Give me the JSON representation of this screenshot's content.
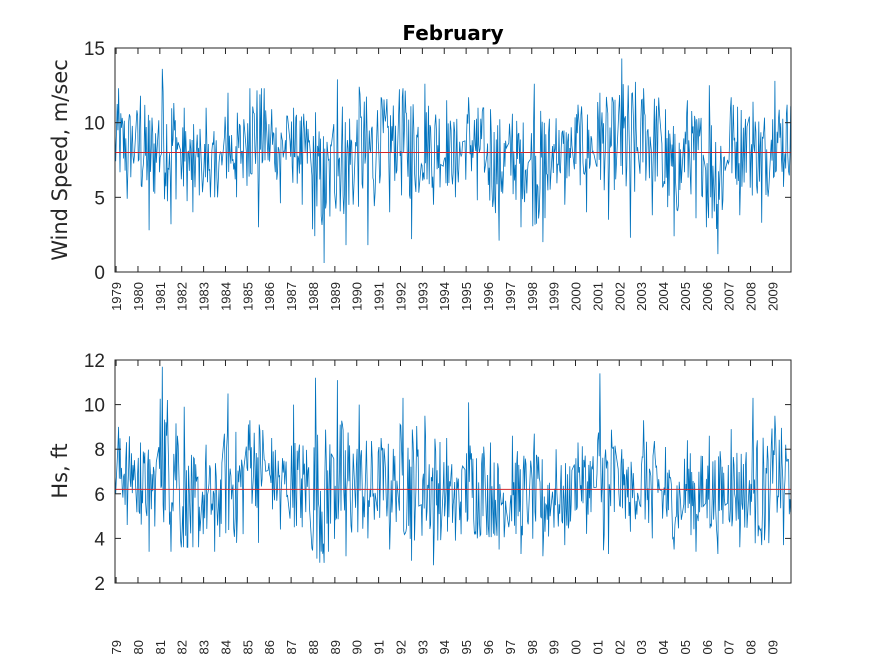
{
  "chart_data": [
    {
      "type": "line",
      "title": "February",
      "ylabel": "Wind Speed, m/sec",
      "xlabel": "",
      "ylim": [
        0,
        15
      ],
      "yticks": [
        0,
        5,
        10,
        15
      ],
      "xlim": [
        1979.0,
        2009.9
      ],
      "x_tick_labels": [
        "1979",
        "1980",
        "1981",
        "1982",
        "1983",
        "1984",
        "1985",
        "1986",
        "1987",
        "1988",
        "1989",
        "1990",
        "1991",
        "1992",
        "1993",
        "1994",
        "1995",
        "1996",
        "1997",
        "1998",
        "1999",
        "2000",
        "2001",
        "2002",
        "2003",
        "2004",
        "2005",
        "2006",
        "2007",
        "2008",
        "2009"
      ],
      "mean_line": 8.0,
      "mean_color": "#d62728",
      "series_color": "#0072bd",
      "grid": false,
      "yearly": [
        {
          "year": 1979,
          "mean": 8.5,
          "min": 4.9,
          "max": 12.3
        },
        {
          "year": 1980,
          "mean": 8.0,
          "min": 2.8,
          "max": 11.8
        },
        {
          "year": 1981,
          "mean": 8.6,
          "min": 3.2,
          "max": 13.6
        },
        {
          "year": 1982,
          "mean": 7.3,
          "min": 4.0,
          "max": 11.0
        },
        {
          "year": 1983,
          "mean": 7.2,
          "min": 5.0,
          "max": 11.0
        },
        {
          "year": 1984,
          "mean": 8.2,
          "min": 5.0,
          "max": 12.0
        },
        {
          "year": 1985,
          "mean": 9.2,
          "min": 3.0,
          "max": 12.3
        },
        {
          "year": 1986,
          "mean": 8.4,
          "min": 4.6,
          "max": 10.9
        },
        {
          "year": 1987,
          "mean": 8.2,
          "min": 4.5,
          "max": 11.0
        },
        {
          "year": 1988,
          "mean": 6.0,
          "min": 0.6,
          "max": 10.7
        },
        {
          "year": 1989,
          "mean": 7.7,
          "min": 1.8,
          "max": 12.9
        },
        {
          "year": 1990,
          "mean": 8.0,
          "min": 1.8,
          "max": 12.4
        },
        {
          "year": 1991,
          "mean": 8.8,
          "min": 4.0,
          "max": 11.7
        },
        {
          "year": 1992,
          "mean": 8.5,
          "min": 2.2,
          "max": 12.3
        },
        {
          "year": 1993,
          "mean": 8.6,
          "min": 4.5,
          "max": 12.6
        },
        {
          "year": 1994,
          "mean": 8.0,
          "min": 5.0,
          "max": 11.5
        },
        {
          "year": 1995,
          "mean": 8.6,
          "min": 4.8,
          "max": 11.7
        },
        {
          "year": 1996,
          "mean": 7.2,
          "min": 2.1,
          "max": 10.9
        },
        {
          "year": 1997,
          "mean": 7.5,
          "min": 3.0,
          "max": 10.6
        },
        {
          "year": 1998,
          "mean": 7.0,
          "min": 2.0,
          "max": 12.6
        },
        {
          "year": 1999,
          "mean": 8.0,
          "min": 4.5,
          "max": 10.3
        },
        {
          "year": 2000,
          "mean": 8.4,
          "min": 4.0,
          "max": 11.2
        },
        {
          "year": 2001,
          "mean": 8.6,
          "min": 3.5,
          "max": 12.0
        },
        {
          "year": 2002,
          "mean": 8.4,
          "min": 2.3,
          "max": 14.3
        },
        {
          "year": 2003,
          "mean": 8.9,
          "min": 3.8,
          "max": 12.3
        },
        {
          "year": 2004,
          "mean": 6.8,
          "min": 2.4,
          "max": 10.9
        },
        {
          "year": 2005,
          "mean": 8.0,
          "min": 3.6,
          "max": 11.5
        },
        {
          "year": 2006,
          "mean": 6.9,
          "min": 1.2,
          "max": 12.5
        },
        {
          "year": 2007,
          "mean": 8.6,
          "min": 3.8,
          "max": 11.7
        },
        {
          "year": 2008,
          "mean": 8.0,
          "min": 3.3,
          "max": 11.4
        },
        {
          "year": 2009,
          "mean": 9.0,
          "min": 5.7,
          "max": 12.8
        }
      ]
    },
    {
      "type": "line",
      "title": "",
      "ylabel": "Hs, ft",
      "xlabel": "",
      "ylim": [
        2,
        12
      ],
      "yticks": [
        2,
        4,
        6,
        8,
        10,
        12
      ],
      "xlim": [
        1979.0,
        2009.9
      ],
      "x_tick_labels": [
        "79",
        "80",
        "81",
        "82",
        "83",
        "84",
        "85",
        "86",
        "87",
        "88",
        "89",
        "90",
        "91",
        "92",
        "93",
        "94",
        "95",
        "96",
        "97",
        "98",
        "99",
        "00",
        "01",
        "02",
        "03",
        "04",
        "05",
        "06",
        "07",
        "08",
        "09"
      ],
      "mean_line": 6.2,
      "mean_color": "#d62728",
      "series_color": "#0072bd",
      "grid": false,
      "yearly": [
        {
          "year": 1979,
          "mean": 7.0,
          "min": 4.6,
          "max": 9.0
        },
        {
          "year": 1980,
          "mean": 6.3,
          "min": 3.4,
          "max": 8.3
        },
        {
          "year": 1981,
          "mean": 7.6,
          "min": 3.4,
          "max": 11.7
        },
        {
          "year": 1982,
          "mean": 5.4,
          "min": 3.6,
          "max": 9.9
        },
        {
          "year": 1983,
          "mean": 5.7,
          "min": 3.4,
          "max": 8.2
        },
        {
          "year": 1984,
          "mean": 6.4,
          "min": 3.8,
          "max": 10.5
        },
        {
          "year": 1985,
          "mean": 7.4,
          "min": 3.8,
          "max": 9.3
        },
        {
          "year": 1986,
          "mean": 6.6,
          "min": 4.4,
          "max": 8.5
        },
        {
          "year": 1987,
          "mean": 6.5,
          "min": 4.5,
          "max": 10.0
        },
        {
          "year": 1988,
          "mean": 6.0,
          "min": 2.9,
          "max": 11.2
        },
        {
          "year": 1989,
          "mean": 6.5,
          "min": 3.2,
          "max": 11.1
        },
        {
          "year": 1990,
          "mean": 6.3,
          "min": 4.0,
          "max": 10.0
        },
        {
          "year": 1991,
          "mean": 6.5,
          "min": 3.5,
          "max": 8.5
        },
        {
          "year": 1992,
          "mean": 6.6,
          "min": 3.0,
          "max": 10.3
        },
        {
          "year": 1993,
          "mean": 6.4,
          "min": 2.8,
          "max": 9.5
        },
        {
          "year": 1994,
          "mean": 5.8,
          "min": 3.9,
          "max": 8.5
        },
        {
          "year": 1995,
          "mean": 6.3,
          "min": 4.0,
          "max": 10.1
        },
        {
          "year": 1996,
          "mean": 5.8,
          "min": 3.5,
          "max": 8.3
        },
        {
          "year": 1997,
          "mean": 6.0,
          "min": 3.3,
          "max": 8.6
        },
        {
          "year": 1998,
          "mean": 5.7,
          "min": 3.2,
          "max": 8.7
        },
        {
          "year": 1999,
          "mean": 5.8,
          "min": 3.7,
          "max": 8.0
        },
        {
          "year": 2000,
          "mean": 6.6,
          "min": 4.2,
          "max": 8.3
        },
        {
          "year": 2001,
          "mean": 6.4,
          "min": 3.3,
          "max": 11.4
        },
        {
          "year": 2002,
          "mean": 6.2,
          "min": 4.3,
          "max": 8.0
        },
        {
          "year": 2003,
          "mean": 6.4,
          "min": 4.0,
          "max": 9.3
        },
        {
          "year": 2004,
          "mean": 5.7,
          "min": 3.5,
          "max": 8.1
        },
        {
          "year": 2005,
          "mean": 6.0,
          "min": 3.4,
          "max": 8.4
        },
        {
          "year": 2006,
          "mean": 6.0,
          "min": 3.3,
          "max": 8.6
        },
        {
          "year": 2007,
          "mean": 6.3,
          "min": 3.6,
          "max": 8.9
        },
        {
          "year": 2008,
          "mean": 6.2,
          "min": 3.7,
          "max": 10.3
        },
        {
          "year": 2009,
          "mean": 6.8,
          "min": 3.7,
          "max": 9.5
        }
      ]
    }
  ]
}
